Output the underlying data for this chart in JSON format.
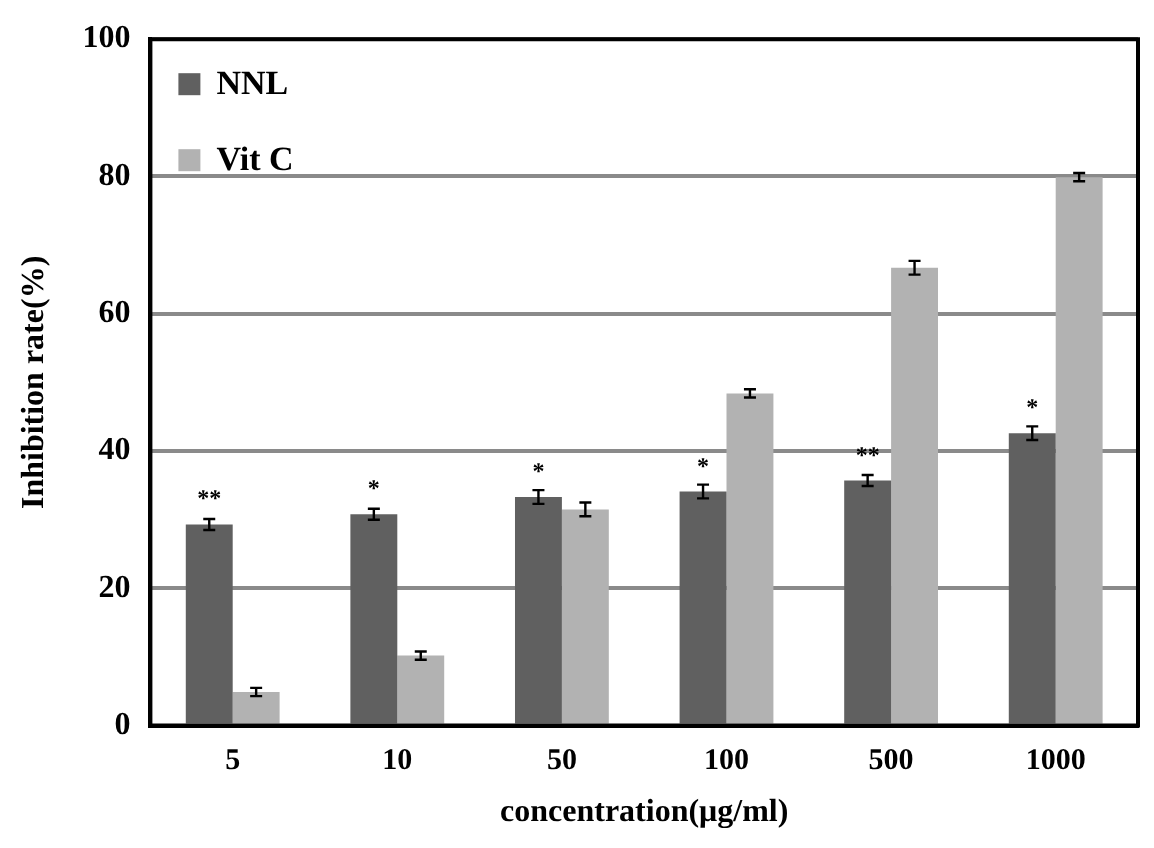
{
  "chart_data": {
    "type": "bar",
    "xlabel": "concentration(μg/ml)",
    "ylabel": "Inhibition rate(%)",
    "categories": [
      "5",
      "10",
      "50",
      "100",
      "500",
      "1000"
    ],
    "series": [
      {
        "name": "NNL",
        "color": "#606060",
        "values": [
          29.3,
          30.8,
          33.3,
          34.1,
          35.7,
          42.6
        ],
        "errors": [
          0.8,
          0.8,
          1,
          1,
          0.8,
          1
        ]
      },
      {
        "name": "Vit C",
        "color": "#b2b2b2",
        "values": [
          4.9,
          10.2,
          31.5,
          48.4,
          66.7,
          79.9
        ],
        "errors": [
          0.6,
          0.6,
          1,
          0.6,
          1,
          0.6
        ]
      }
    ],
    "ylim": [
      0,
      100
    ],
    "yticks": [
      0,
      20,
      40,
      60,
      80,
      100
    ],
    "grid": "y",
    "legend": "top left",
    "annotations": [
      {
        "text": "**",
        "x": "5",
        "y": 29.3
      },
      {
        "text": "*",
        "x": "10",
        "y": 30.8
      },
      {
        "text": "*",
        "x": "50",
        "y": 33.3
      },
      {
        "text": "*",
        "x": "100",
        "y": 34.1
      },
      {
        "text": "**",
        "x": "500",
        "y": 35.7
      },
      {
        "text": "*",
        "x": "1000",
        "y": 42.6
      }
    ]
  }
}
